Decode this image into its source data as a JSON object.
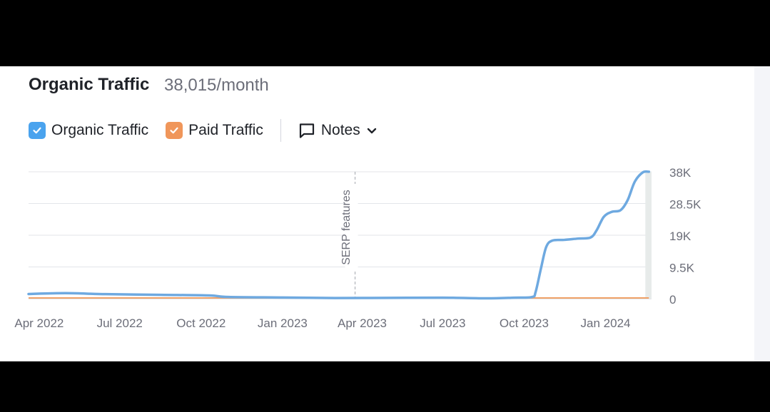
{
  "header": {
    "title": "Organic Traffic",
    "subtitle": "38,015/month"
  },
  "legend": {
    "organic_label": "Organic Traffic",
    "paid_label": "Paid Traffic",
    "notes_label": "Notes"
  },
  "colors": {
    "organic": "#6ea9e0",
    "paid": "#f0a167",
    "checkbox_organic": "#4aa3ee",
    "checkbox_paid": "#f0965a",
    "grid": "#e3e5ea",
    "axis_text": "#6c6e79"
  },
  "icons": [
    "check-icon",
    "note-bubble-icon",
    "chevron-down-icon"
  ],
  "chart_data": {
    "type": "line",
    "x_range": [
      "2022-03-20",
      "2024-02-22"
    ],
    "x_ticks": [
      {
        "date": "2022-04-01",
        "label": "Apr 2022"
      },
      {
        "date": "2022-07-01",
        "label": "Jul 2022"
      },
      {
        "date": "2022-10-01",
        "label": "Oct 2022"
      },
      {
        "date": "2023-01-01",
        "label": "Jan 2023"
      },
      {
        "date": "2023-04-01",
        "label": "Apr 2023"
      },
      {
        "date": "2023-07-01",
        "label": "Jul 2023"
      },
      {
        "date": "2023-10-01",
        "label": "Oct 2023"
      },
      {
        "date": "2024-01-01",
        "label": "Jan 2024"
      }
    ],
    "ylim": [
      0,
      38000
    ],
    "y_ticks": [
      {
        "value": 0,
        "label": "0"
      },
      {
        "value": 9500,
        "label": "9.5K"
      },
      {
        "value": 19000,
        "label": "19K"
      },
      {
        "value": 28500,
        "label": "28.5K"
      },
      {
        "value": 38000,
        "label": "38K"
      }
    ],
    "grid": true,
    "annotation": {
      "date": "2023-03-24",
      "label": "SERP features"
    },
    "highlight": {
      "from": "2024-02-15",
      "to": "2024-02-22"
    },
    "series": [
      {
        "name": "Organic Traffic",
        "points": [
          [
            "2022-03-20",
            1400
          ],
          [
            "2022-05-01",
            1650
          ],
          [
            "2022-06-15",
            1350
          ],
          [
            "2022-08-15",
            1150
          ],
          [
            "2022-10-10",
            950
          ],
          [
            "2022-11-01",
            500
          ],
          [
            "2023-01-01",
            350
          ],
          [
            "2023-03-01",
            200
          ],
          [
            "2023-05-01",
            250
          ],
          [
            "2023-07-01",
            300
          ],
          [
            "2023-08-20",
            100
          ],
          [
            "2023-09-20",
            300
          ],
          [
            "2023-10-10",
            500
          ],
          [
            "2023-10-14",
            2000
          ],
          [
            "2023-10-20",
            9000
          ],
          [
            "2023-10-26",
            15500
          ],
          [
            "2023-11-02",
            17400
          ],
          [
            "2023-11-15",
            17600
          ],
          [
            "2023-12-01",
            18000
          ],
          [
            "2023-12-15",
            18300
          ],
          [
            "2023-12-22",
            20500
          ],
          [
            "2023-12-30",
            24500
          ],
          [
            "2024-01-08",
            26000
          ],
          [
            "2024-01-18",
            26500
          ],
          [
            "2024-01-26",
            29500
          ],
          [
            "2024-02-03",
            35000
          ],
          [
            "2024-02-12",
            37800
          ],
          [
            "2024-02-19",
            38015
          ]
        ]
      },
      {
        "name": "Paid Traffic",
        "points": [
          [
            "2022-03-20",
            0
          ],
          [
            "2024-02-19",
            0
          ]
        ]
      }
    ]
  }
}
